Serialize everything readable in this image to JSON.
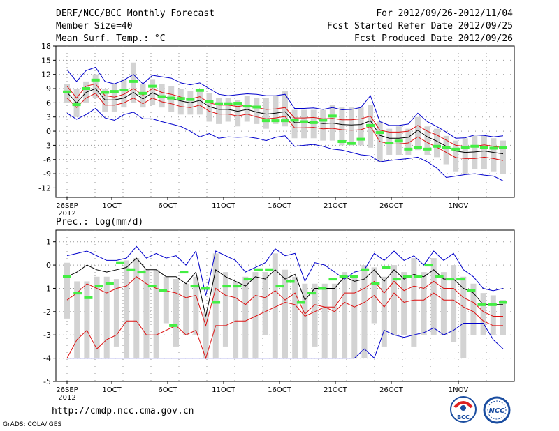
{
  "header": {
    "title": "DERF/NCC/BCC Monthly Forecast",
    "member_size": "Member Size=40",
    "variable": "Mean Surf. Temp.: °C",
    "period": "For 2012/09/26-2012/11/04",
    "fcst_start": "Fcst Started Refer Date 2012/09/25",
    "fcst_produced": "Fcst Produced Date 2012/09/26"
  },
  "footer": {
    "url": "http://cmdp.ncc.cma.gov.cn",
    "credit": "GrADS: COLA/IGES",
    "logo_left": "BCC",
    "logo_right": "NCC"
  },
  "colors": {
    "ensemble_mean": "#000000",
    "spread_band": "#dd1111",
    "envelope": "#0000cc",
    "observation": "#44ee44",
    "box": "#d3d3d3"
  },
  "chart_data": [
    {
      "type": "line",
      "title": "Mean Surf. Temp.: °C",
      "xlabel": "",
      "ylabel": "°C",
      "ylim": [
        -14,
        18
      ],
      "yticks": [
        18,
        15,
        12,
        9,
        6,
        3,
        0,
        -3,
        -6,
        -9,
        -12
      ],
      "x_days": 40,
      "xticks": [
        {
          "day": 0,
          "label": "26SEP"
        },
        {
          "day": 4,
          "label": "1OCT"
        },
        {
          "day": 9,
          "label": "6OCT"
        },
        {
          "day": 14,
          "label": "11OCT"
        },
        {
          "day": 19,
          "label": "16OCT"
        },
        {
          "day": 24,
          "label": "21OCT"
        },
        {
          "day": 29,
          "label": "26OCT"
        },
        {
          "day": 35,
          "label": "1NOV"
        }
      ],
      "year_label": "2012",
      "series": [
        {
          "name": "max",
          "values": [
            13.0,
            10.5,
            12.8,
            13.5,
            10.5,
            10.0,
            10.8,
            12.0,
            10.0,
            11.8,
            11.5,
            11.2,
            10.2,
            9.8,
            10.2,
            9.0,
            7.8,
            7.5,
            7.7,
            7.9,
            7.8,
            7.5,
            7.5,
            7.8,
            4.8,
            4.8,
            4.9,
            4.6,
            5.0,
            4.5,
            4.6,
            5.0,
            7.5,
            2.0,
            1.2,
            1.2,
            1.5,
            3.8,
            2.0,
            1.0,
            -0.2,
            -1.5,
            -1.4,
            -0.8,
            -0.9,
            -1.2,
            -1.0
          ]
        },
        {
          "name": "upper",
          "values": [
            9.5,
            7.0,
            9.5,
            10.0,
            7.5,
            7.2,
            7.8,
            9.0,
            7.6,
            9.0,
            8.2,
            7.8,
            7.2,
            6.8,
            7.3,
            6.0,
            5.5,
            5.5,
            5.2,
            5.5,
            5.0,
            4.6,
            4.7,
            5.0,
            2.8,
            2.8,
            2.9,
            2.6,
            2.7,
            2.4,
            2.4,
            2.6,
            3.2,
            0.2,
            -0.2,
            -0.2,
            0.0,
            1.2,
            0.0,
            -0.8,
            -1.9,
            -3.0,
            -3.2,
            -3.2,
            -2.9,
            -3.2,
            -3.5
          ]
        },
        {
          "name": "mean",
          "values": [
            8.2,
            6.0,
            8.2,
            9.0,
            6.6,
            6.6,
            7.0,
            8.2,
            6.8,
            8.1,
            7.3,
            6.9,
            6.4,
            6.0,
            6.5,
            5.2,
            4.6,
            4.6,
            4.2,
            4.6,
            4.0,
            3.6,
            3.8,
            4.1,
            1.8,
            1.8,
            1.9,
            1.6,
            1.7,
            1.4,
            1.3,
            1.4,
            2.2,
            -0.9,
            -1.5,
            -1.5,
            -1.3,
            0.2,
            -1.2,
            -2.1,
            -3.2,
            -4.2,
            -4.5,
            -4.4,
            -4.2,
            -4.5,
            -4.8
          ]
        },
        {
          "name": "lower",
          "values": [
            7.0,
            5.0,
            7.0,
            8.0,
            5.5,
            5.5,
            6.0,
            7.0,
            5.8,
            7.0,
            6.2,
            5.8,
            5.2,
            5.0,
            5.5,
            4.2,
            3.6,
            3.6,
            3.2,
            3.6,
            3.0,
            2.6,
            2.8,
            3.1,
            0.7,
            0.7,
            0.8,
            0.5,
            0.6,
            0.3,
            0.2,
            0.3,
            1.0,
            -2.2,
            -2.7,
            -2.7,
            -2.5,
            -1.2,
            -2.4,
            -3.4,
            -4.5,
            -5.6,
            -5.8,
            -5.8,
            -5.5,
            -5.8,
            -6.2
          ]
        },
        {
          "name": "min",
          "values": [
            3.8,
            2.5,
            3.5,
            4.8,
            2.8,
            2.3,
            3.5,
            4.0,
            2.6,
            2.6,
            2.0,
            1.5,
            1.0,
            0.0,
            -1.2,
            -0.5,
            -1.5,
            -1.2,
            -1.3,
            -1.2,
            -1.5,
            -2.0,
            -1.3,
            -1.0,
            -3.2,
            -3.0,
            -2.8,
            -3.2,
            -3.8,
            -4.0,
            -4.5,
            -5.0,
            -5.2,
            -6.5,
            -6.2,
            -6.0,
            -5.8,
            -5.5,
            -6.5,
            -7.8,
            -9.8,
            -9.5,
            -9.2,
            -9.0,
            -9.3,
            -9.5,
            -10.5
          ]
        }
      ],
      "boxes": [
        {
          "lo": 6.0,
          "hi": 10.0
        },
        {
          "lo": 3.0,
          "hi": 9.0
        },
        {
          "lo": 6.0,
          "hi": 10.5
        },
        {
          "lo": 7.0,
          "hi": 12.0
        },
        {
          "lo": 4.0,
          "hi": 9.0
        },
        {
          "lo": 4.0,
          "hi": 10.0
        },
        {
          "lo": 5.0,
          "hi": 11.0
        },
        {
          "lo": 6.0,
          "hi": 14.5
        },
        {
          "lo": 5.0,
          "hi": 10.0
        },
        {
          "lo": 5.5,
          "hi": 11.0
        },
        {
          "lo": 5.0,
          "hi": 10.0
        },
        {
          "lo": 4.0,
          "hi": 9.5
        },
        {
          "lo": 3.5,
          "hi": 9.0
        },
        {
          "lo": 3.5,
          "hi": 8.5
        },
        {
          "lo": 3.5,
          "hi": 9.0
        },
        {
          "lo": 2.0,
          "hi": 8.0
        },
        {
          "lo": 1.5,
          "hi": 7.0
        },
        {
          "lo": 2.0,
          "hi": 7.0
        },
        {
          "lo": 1.0,
          "hi": 6.5
        },
        {
          "lo": 2.0,
          "hi": 7.5
        },
        {
          "lo": 1.5,
          "hi": 7.0
        },
        {
          "lo": 0.5,
          "hi": 7.0
        },
        {
          "lo": 1.5,
          "hi": 7.5
        },
        {
          "lo": 1.0,
          "hi": 8.5
        },
        {
          "lo": -1.5,
          "hi": 4.5
        },
        {
          "lo": -1.5,
          "hi": 4.5
        },
        {
          "lo": -1.5,
          "hi": 4.5
        },
        {
          "lo": -2.0,
          "hi": 4.5
        },
        {
          "lo": -2.0,
          "hi": 5.5
        },
        {
          "lo": -3.0,
          "hi": 5.0
        },
        {
          "lo": -3.0,
          "hi": 5.0
        },
        {
          "lo": -3.0,
          "hi": 5.0
        },
        {
          "lo": -3.5,
          "hi": 5.5
        },
        {
          "lo": -6.5,
          "hi": 2.0
        },
        {
          "lo": -5.0,
          "hi": 0.5
        },
        {
          "lo": -5.0,
          "hi": 1.0
        },
        {
          "lo": -5.0,
          "hi": 0.5
        },
        {
          "lo": -4.0,
          "hi": 3.0
        },
        {
          "lo": -5.0,
          "hi": 1.0
        },
        {
          "lo": -5.5,
          "hi": 0.5
        },
        {
          "lo": -7.0,
          "hi": -1.0
        },
        {
          "lo": -8.5,
          "hi": -2.0
        },
        {
          "lo": -9.0,
          "hi": -1.5
        },
        {
          "lo": -8.0,
          "hi": -1.0
        },
        {
          "lo": -8.0,
          "hi": -1.0
        },
        {
          "lo": -8.5,
          "hi": -1.5
        },
        {
          "lo": -9.0,
          "hi": -2.0
        }
      ],
      "observations": [
        8.3,
        5.6,
        9.0,
        10.8,
        8.2,
        8.4,
        8.7,
        10.5,
        8.0,
        9.5,
        7.3,
        7.0,
        6.9,
        6.7,
        8.6,
        6.3,
        5.8,
        5.8,
        5.9,
        5.3,
        5.1,
        2.2,
        2.2,
        2.2,
        2.3,
        2.0,
        1.8,
        2.3,
        3.2,
        -2.2,
        -2.6,
        -1.7,
        1.2,
        -0.3,
        -2.5,
        -2.1,
        -3.8,
        -3.5,
        -3.8,
        -3.2,
        -3.5,
        -3.8,
        -3.5,
        -3.2,
        -3.4,
        -3.6,
        -3.5
      ]
    },
    {
      "type": "line",
      "title": "Prec.: log(mm/d)",
      "xlabel": "",
      "ylabel": "log(mm/d)",
      "ylim": [
        -5,
        1.5
      ],
      "yticks": [
        1,
        0,
        -1,
        -2,
        -3,
        -4,
        -5
      ],
      "x_days": 40,
      "xticks": [
        {
          "day": 0,
          "label": "26SEP"
        },
        {
          "day": 4,
          "label": "1OCT"
        },
        {
          "day": 9,
          "label": "6OCT"
        },
        {
          "day": 14,
          "label": "11OCT"
        },
        {
          "day": 19,
          "label": "16OCT"
        },
        {
          "day": 24,
          "label": "21OCT"
        },
        {
          "day": 29,
          "label": "26OCT"
        },
        {
          "day": 35,
          "label": "1NOV"
        }
      ],
      "year_label": "2012",
      "series": [
        {
          "name": "max",
          "values": [
            0.4,
            0.5,
            0.6,
            0.4,
            0.2,
            0.2,
            0.3,
            0.8,
            0.3,
            0.5,
            0.3,
            0.4,
            0.0,
            0.6,
            -1.3,
            0.6,
            0.4,
            0.2,
            -0.3,
            -0.1,
            0.1,
            0.7,
            0.4,
            0.5,
            -0.7,
            0.1,
            0.0,
            -0.3,
            -0.6,
            -0.3,
            -0.2,
            0.5,
            0.2,
            0.6,
            0.2,
            0.4,
            0.0,
            0.6,
            0.2,
            0.5,
            -0.2,
            -0.5,
            -1.0,
            -1.1,
            -1.0
          ]
        },
        {
          "name": "mean",
          "values": [
            -0.5,
            -0.3,
            0.0,
            -0.2,
            -0.3,
            -0.2,
            -0.1,
            0.3,
            -0.2,
            -0.2,
            -0.5,
            -0.5,
            -0.8,
            -0.3,
            -2.2,
            -0.2,
            -0.5,
            -0.7,
            -0.9,
            -0.5,
            -0.6,
            -0.2,
            -0.6,
            -0.4,
            -1.5,
            -1.0,
            -1.0,
            -1.0,
            -0.5,
            -0.7,
            -0.6,
            -0.2,
            -0.7,
            -0.2,
            -0.6,
            -0.4,
            -0.5,
            -0.2,
            -0.6,
            -0.6,
            -1.0,
            -1.2,
            -1.7,
            -1.7,
            -1.7
          ]
        },
        {
          "name": "lower",
          "values": [
            -1.5,
            -1.2,
            -0.8,
            -1.0,
            -1.2,
            -1.0,
            -0.9,
            -0.5,
            -0.8,
            -1.0,
            -1.1,
            -1.2,
            -1.4,
            -1.3,
            -2.6,
            -1.0,
            -1.3,
            -1.4,
            -1.7,
            -1.3,
            -1.4,
            -1.1,
            -1.5,
            -1.2,
            -2.1,
            -1.7,
            -1.8,
            -1.8,
            -1.2,
            -1.2,
            -1.0,
            -0.7,
            -1.2,
            -0.7,
            -1.1,
            -0.9,
            -1.0,
            -0.7,
            -1.0,
            -1.0,
            -1.4,
            -1.6,
            -2.0,
            -2.2,
            -2.2
          ]
        },
        {
          "name": "lowest",
          "values": [
            -4.0,
            -3.2,
            -2.8,
            -3.6,
            -3.2,
            -3.0,
            -2.4,
            -2.4,
            -3.0,
            -3.0,
            -2.8,
            -2.6,
            -3.0,
            -2.8,
            -4.0,
            -2.6,
            -2.6,
            -2.4,
            -2.4,
            -2.2,
            -2.0,
            -1.8,
            -1.6,
            -1.7,
            -2.2,
            -2.0,
            -1.8,
            -2.0,
            -1.6,
            -1.8,
            -1.6,
            -1.3,
            -1.8,
            -1.2,
            -1.6,
            -1.5,
            -1.5,
            -1.2,
            -1.5,
            -1.5,
            -1.8,
            -2.0,
            -2.4,
            -2.6,
            -2.6
          ]
        },
        {
          "name": "min",
          "values": [
            -4.0,
            -4.0,
            -4.0,
            -4.0,
            -4.0,
            -4.0,
            -4.0,
            -4.0,
            -4.0,
            -4.0,
            -4.0,
            -4.0,
            -4.0,
            -4.0,
            -4.0,
            -4.0,
            -4.0,
            -4.0,
            -4.0,
            -4.0,
            -4.0,
            -4.0,
            -4.0,
            -4.0,
            -4.0,
            -4.0,
            -4.0,
            -4.0,
            -4.0,
            -4.0,
            -3.6,
            -4.0,
            -2.8,
            -3.0,
            -3.1,
            -3.0,
            -2.9,
            -2.7,
            -3.0,
            -2.8,
            -2.5,
            -2.5,
            -2.5,
            -3.2,
            -3.6
          ]
        },
        {
          "name": "envelope_high",
          "values": [
            0.4,
            0.5,
            0.6,
            0.4,
            0.2,
            0.2,
            0.3,
            0.8,
            0.3,
            0.5,
            0.3,
            0.4,
            0.0,
            0.6,
            -1.3,
            0.6,
            0.4,
            0.2,
            -0.3,
            -0.1,
            0.1,
            0.7,
            0.4,
            0.5,
            -0.7,
            0.1,
            0.0,
            -0.3,
            -0.6,
            -0.3,
            -0.2,
            0.5,
            0.2,
            0.6,
            0.2,
            0.4,
            0.0,
            0.6,
            0.2,
            0.5,
            -0.2,
            -0.5,
            -1.0,
            -1.1,
            -1.0
          ]
        }
      ],
      "boxes": [
        {
          "lo": -2.3,
          "hi": 0.1
        },
        {
          "lo": -4.0,
          "hi": -0.7
        },
        {
          "lo": -4.0,
          "hi": -0.7
        },
        {
          "lo": -4.0,
          "hi": -0.5
        },
        {
          "lo": -4.0,
          "hi": -0.5
        },
        {
          "lo": -3.5,
          "hi": -0.6
        },
        {
          "lo": -4.0,
          "hi": 0.2
        },
        {
          "lo": -4.0,
          "hi": 0.3
        },
        {
          "lo": -4.0,
          "hi": -0.2
        },
        {
          "lo": -4.0,
          "hi": -0.2
        },
        {
          "lo": -2.5,
          "hi": -0.5
        },
        {
          "lo": -3.5,
          "hi": -0.6
        },
        {
          "lo": -3.0,
          "hi": -0.8
        },
        {
          "lo": -3.0,
          "hi": -0.5
        },
        {
          "lo": -4.0,
          "hi": -2.0
        },
        {
          "lo": -4.0,
          "hi": 0.5
        },
        {
          "lo": -3.5,
          "hi": -0.3
        },
        {
          "lo": -4.0,
          "hi": -0.7
        },
        {
          "lo": -4.0,
          "hi": -0.5
        },
        {
          "lo": -4.0,
          "hi": -0.3
        },
        {
          "lo": -3.0,
          "hi": -0.3
        },
        {
          "lo": -4.0,
          "hi": 0.5
        },
        {
          "lo": -4.0,
          "hi": -0.2
        },
        {
          "lo": -4.0,
          "hi": -0.5
        },
        {
          "lo": -4.0,
          "hi": -0.8
        },
        {
          "lo": -3.5,
          "hi": -0.8
        },
        {
          "lo": -4.0,
          "hi": -0.8
        },
        {
          "lo": -4.0,
          "hi": -0.8
        },
        {
          "lo": -4.0,
          "hi": -0.3
        },
        {
          "lo": -4.0,
          "hi": -0.5
        },
        {
          "lo": -4.0,
          "hi": 0.0
        },
        {
          "lo": -2.5,
          "hi": -0.1
        },
        {
          "lo": -3.5,
          "hi": -0.5
        },
        {
          "lo": -3.0,
          "hi": 0.0
        },
        {
          "lo": -3.0,
          "hi": -0.3
        },
        {
          "lo": -3.5,
          "hi": 0.3
        },
        {
          "lo": -3.0,
          "hi": -0.3
        },
        {
          "lo": -3.0,
          "hi": 0.3
        },
        {
          "lo": -3.0,
          "hi": -0.3
        },
        {
          "lo": -3.3,
          "hi": 0.0
        },
        {
          "lo": -4.0,
          "hi": -0.5
        },
        {
          "lo": -3.0,
          "hi": -0.8
        },
        {
          "lo": -3.0,
          "hi": -1.2
        },
        {
          "lo": -3.0,
          "hi": -1.3
        },
        {
          "lo": -3.0,
          "hi": -1.5
        }
      ],
      "observations": [
        -0.5,
        -1.2,
        -1.4,
        -0.9,
        -0.8,
        0.1,
        -0.2,
        -0.3,
        -0.9,
        -1.1,
        -2.6,
        -0.3,
        -0.9,
        -1.0,
        -1.6,
        -0.9,
        -0.9,
        -0.6,
        -0.2,
        -0.2,
        -0.9,
        -0.7,
        -1.6,
        -1.2,
        -1.0,
        -0.6,
        -0.5,
        -0.5,
        -0.2,
        -0.8,
        -0.1,
        -0.6,
        -0.5,
        -0.5,
        0.0,
        -0.5,
        -0.6,
        -0.6,
        -1.1,
        -1.7,
        -1.7,
        -1.6
      ]
    }
  ]
}
